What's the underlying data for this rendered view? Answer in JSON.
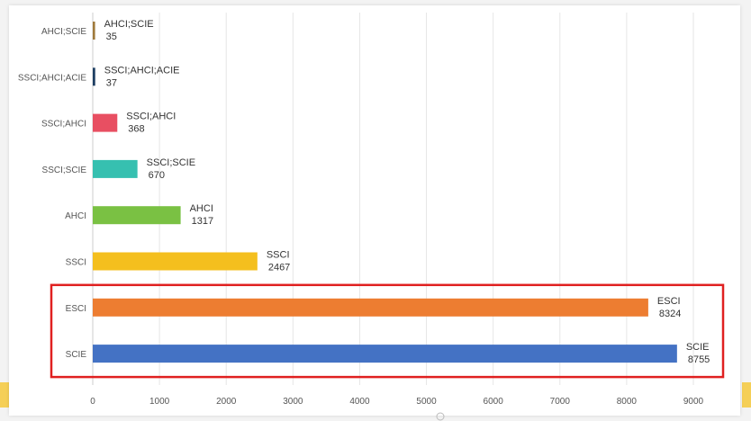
{
  "chart_data": {
    "type": "bar",
    "orientation": "horizontal",
    "categories": [
      "AHCI;SCIE",
      "SSCI;AHCI;ACIE",
      "SSCI;AHCI",
      "SSCI;SCIE",
      "AHCI",
      "SSCI",
      "ESCI",
      "SCIE"
    ],
    "values": [
      35,
      37,
      368,
      670,
      1317,
      2467,
      8324,
      8755
    ],
    "colors": [
      "#a07a3c",
      "#1f3f63",
      "#e84f62",
      "#36c0b0",
      "#7ac143",
      "#f4bf1e",
      "#ed7d31",
      "#4472c4"
    ],
    "xlim": [
      0,
      9000
    ],
    "x_ticks": [
      "0",
      "1000",
      "2000",
      "3000",
      "4000",
      "5000",
      "6000",
      "7000",
      "8000",
      "9000"
    ],
    "grid": true,
    "highlight": [
      "ESCI",
      "SCIE"
    ],
    "highlight_color": "#e02020"
  }
}
